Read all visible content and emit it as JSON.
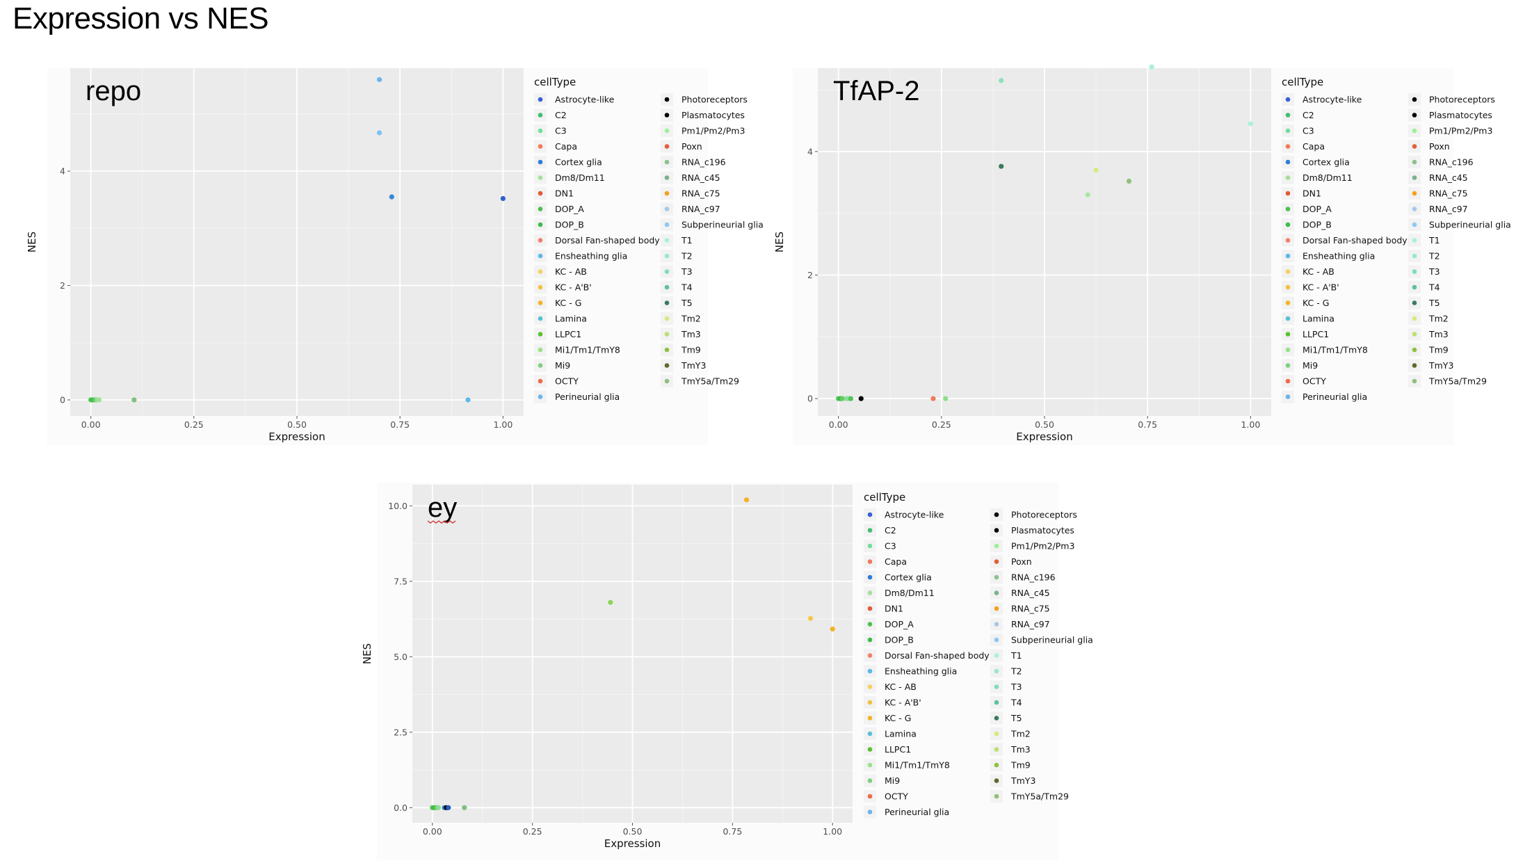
{
  "page_title": "Expression vs NES",
  "chart_data": [
    {
      "type": "scatter",
      "title": "repo",
      "xlabel": "Expression",
      "ylabel": "NES",
      "xlim": [
        -0.05,
        1.05
      ],
      "ylim": [
        -0.28,
        5.8
      ],
      "xticks": [
        0,
        0.25,
        0.5,
        0.75,
        1
      ],
      "xtick_labels": [
        "0.00",
        "0.25",
        "0.50",
        "0.75",
        "1.00"
      ],
      "yticks": [
        0,
        2,
        4
      ],
      "ytick_labels": [
        "0",
        "2",
        "4"
      ],
      "grid": true,
      "legend_title": "cellType",
      "legend_position": "right",
      "points": [
        {
          "x": 0.0,
          "y": 0,
          "color": "#55c455"
        },
        {
          "x": 0.005,
          "y": 0,
          "color": "#3dbb4a"
        },
        {
          "x": 0.01,
          "y": 0,
          "color": "#66cc66"
        },
        {
          "x": 0.015,
          "y": 0,
          "color": "#8ede8e"
        },
        {
          "x": 0.02,
          "y": 0,
          "color": "#a4e09a"
        },
        {
          "x": 0.105,
          "y": 0,
          "color": "#7fbf7f"
        },
        {
          "x": 0.915,
          "y": 0,
          "color": "#5cb8e8"
        },
        {
          "x": 0.7,
          "y": 5.6,
          "color": "#6cb4ea"
        },
        {
          "x": 0.7,
          "y": 4.67,
          "color": "#7cc0f2"
        },
        {
          "x": 0.73,
          "y": 3.55,
          "color": "#3a86d6"
        },
        {
          "x": 1.0,
          "y": 3.52,
          "color": "#2f63c8"
        }
      ]
    },
    {
      "type": "scatter",
      "title": "TfAP-2",
      "xlabel": "Expression",
      "ylabel": "NES",
      "xlim": [
        -0.05,
        1.05
      ],
      "ylim": [
        -0.28,
        5.35
      ],
      "xticks": [
        0,
        0.25,
        0.5,
        0.75,
        1
      ],
      "xtick_labels": [
        "0.00",
        "0.25",
        "0.50",
        "0.75",
        "1.00"
      ],
      "yticks": [
        0,
        2,
        4
      ],
      "ytick_labels": [
        "0",
        "2",
        "4"
      ],
      "grid": true,
      "legend_title": "cellType",
      "legend_position": "right",
      "points": [
        {
          "x": 0.0,
          "y": 0,
          "color": "#55c455"
        },
        {
          "x": 0.005,
          "y": 0,
          "color": "#3dbb4a"
        },
        {
          "x": 0.01,
          "y": 0,
          "color": "#66cc66"
        },
        {
          "x": 0.02,
          "y": 0,
          "color": "#8ede8e"
        },
        {
          "x": 0.025,
          "y": 0,
          "color": "#7fe3a3"
        },
        {
          "x": 0.03,
          "y": 0,
          "color": "#55c455"
        },
        {
          "x": 0.055,
          "y": 0,
          "color": "#000000"
        },
        {
          "x": 0.23,
          "y": 0,
          "color": "#f07a5a"
        },
        {
          "x": 0.26,
          "y": 0,
          "color": "#8ede8e"
        },
        {
          "x": 0.395,
          "y": 5.15,
          "color": "#8fe0b8"
        },
        {
          "x": 0.76,
          "y": 5.37,
          "color": "#aaf0d8"
        },
        {
          "x": 1.0,
          "y": 4.45,
          "color": "#aaf0d8"
        },
        {
          "x": 0.395,
          "y": 3.76,
          "color": "#3c7a5c"
        },
        {
          "x": 0.625,
          "y": 3.7,
          "color": "#d3ec7e"
        },
        {
          "x": 0.705,
          "y": 3.52,
          "color": "#8fc07a"
        },
        {
          "x": 0.605,
          "y": 3.3,
          "color": "#a8e6a0"
        }
      ]
    },
    {
      "type": "scatter",
      "title": "ey",
      "xlabel": "Expression",
      "ylabel": "NES",
      "xlim": [
        -0.05,
        1.05
      ],
      "ylim": [
        -0.5,
        10.7
      ],
      "xticks": [
        0,
        0.25,
        0.5,
        0.75,
        1
      ],
      "xtick_labels": [
        "0.00",
        "0.25",
        "0.50",
        "0.75",
        "1.00"
      ],
      "yticks": [
        0,
        2.5,
        5,
        7.5,
        10
      ],
      "ytick_labels": [
        "0.0",
        "2.5",
        "5.0",
        "7.5",
        "10.0"
      ],
      "grid": true,
      "legend_title": "cellType",
      "legend_position": "right",
      "points": [
        {
          "x": 0.0,
          "y": 0,
          "color": "#55c455"
        },
        {
          "x": 0.005,
          "y": 0,
          "color": "#3dbb4a"
        },
        {
          "x": 0.01,
          "y": 0,
          "color": "#66cc66"
        },
        {
          "x": 0.015,
          "y": 0,
          "color": "#8ede8e"
        },
        {
          "x": 0.03,
          "y": 0,
          "color": "#2e7ed6"
        },
        {
          "x": 0.035,
          "y": 0,
          "color": "#000000"
        },
        {
          "x": 0.04,
          "y": 0,
          "color": "#1f5fbf"
        },
        {
          "x": 0.08,
          "y": 0,
          "color": "#7fbf7f"
        },
        {
          "x": 0.785,
          "y": 10.2,
          "color": "#f4b225"
        },
        {
          "x": 0.445,
          "y": 6.8,
          "color": "#8fd35a"
        },
        {
          "x": 0.945,
          "y": 6.27,
          "color": "#f4c84a"
        },
        {
          "x": 1.0,
          "y": 5.92,
          "color": "#f4b225"
        }
      ]
    }
  ],
  "legend_entries": [
    {
      "label": "Astrocyte-like",
      "color": "#3b5fd6"
    },
    {
      "label": "C2",
      "color": "#3fbf6e"
    },
    {
      "label": "C3",
      "color": "#6fdf9f"
    },
    {
      "label": "Capa",
      "color": "#f07a5a"
    },
    {
      "label": "Cortex glia",
      "color": "#2e7ed6"
    },
    {
      "label": "Dm8/Dm11",
      "color": "#a4e09a"
    },
    {
      "label": "DN1",
      "color": "#e05a3a"
    },
    {
      "label": "DOP_A",
      "color": "#4fbf4f"
    },
    {
      "label": "DOP_B",
      "color": "#3dbb4a"
    },
    {
      "label": "Dorsal Fan-shaped body",
      "color": "#f0806a"
    },
    {
      "label": "Ensheathing glia",
      "color": "#5cb8e8"
    },
    {
      "label": "KC - AB",
      "color": "#f8d060"
    },
    {
      "label": "KC - A'B'",
      "color": "#f4c040"
    },
    {
      "label": "KC - G",
      "color": "#f4b225"
    },
    {
      "label": "Lamina",
      "color": "#58c0d8"
    },
    {
      "label": "LLPC1",
      "color": "#5cc030"
    },
    {
      "label": "Mi1/Tm1/TmY8",
      "color": "#9ae08a"
    },
    {
      "label": "Mi9",
      "color": "#7fcf7f"
    },
    {
      "label": "OCTY",
      "color": "#f06a4a"
    },
    {
      "label": "Perineurial glia",
      "color": "#6cb4ea"
    },
    {
      "label": "Photoreceptors",
      "color": "#000000"
    },
    {
      "label": "Plasmatocytes",
      "color": "#000000"
    },
    {
      "label": "Pm1/Pm2/Pm3",
      "color": "#9ef09a"
    },
    {
      "label": "Poxn",
      "color": "#e0603a"
    },
    {
      "label": "RNA_c196",
      "color": "#8fbf8f"
    },
    {
      "label": "RNA_c45",
      "color": "#7faf8f"
    },
    {
      "label": "RNA_c75",
      "color": "#f4a020"
    },
    {
      "label": "RNA_c97",
      "color": "#a8c8e8"
    },
    {
      "label": "Subperineurial glia",
      "color": "#8ec8f0"
    },
    {
      "label": "T1",
      "color": "#aaf0d8"
    },
    {
      "label": "T2",
      "color": "#9ae8c8"
    },
    {
      "label": "T3",
      "color": "#7fdcc0"
    },
    {
      "label": "T4",
      "color": "#5fbfa0"
    },
    {
      "label": "T5",
      "color": "#3c7a5c"
    },
    {
      "label": "Tm2",
      "color": "#d3ec7e"
    },
    {
      "label": "Tm3",
      "color": "#bce070"
    },
    {
      "label": "Tm9",
      "color": "#8fc040"
    },
    {
      "label": "TmY3",
      "color": "#5a6a2a"
    },
    {
      "label": "TmY5a/Tm29",
      "color": "#8fc07a"
    }
  ]
}
